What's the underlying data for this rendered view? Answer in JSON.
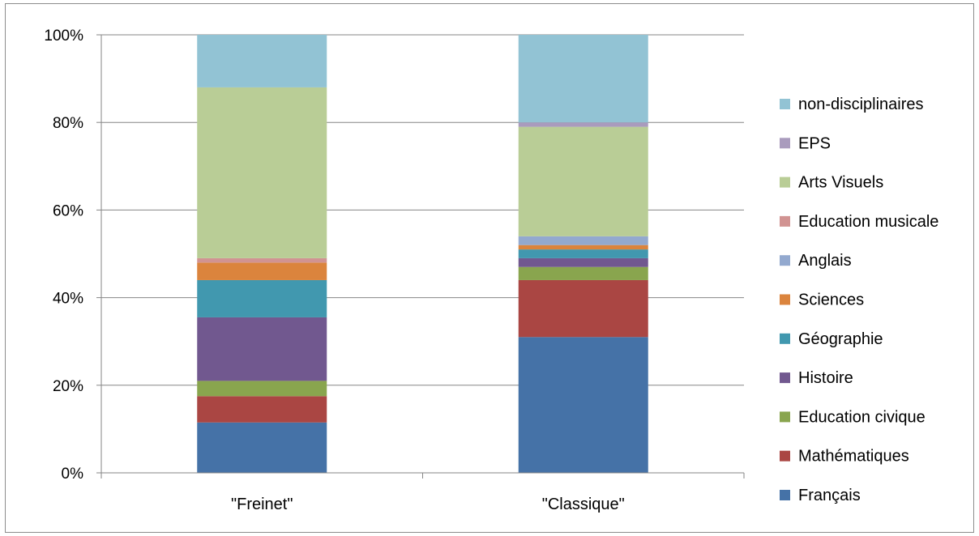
{
  "chart_data": {
    "type": "stacked-bar-100",
    "categories": [
      "\"Freinet\"",
      "\"Classique\""
    ],
    "y_ticks": [
      "0%",
      "20%",
      "40%",
      "60%",
      "80%",
      "100%"
    ],
    "ylim": [
      0,
      100
    ],
    "grid": true,
    "legend_position": "right",
    "series": [
      {
        "name": "Français",
        "color": "#4572a7",
        "values": [
          11.5,
          31
        ]
      },
      {
        "name": "Mathématiques",
        "color": "#aa4643",
        "values": [
          6,
          13
        ]
      },
      {
        "name": "Education civique",
        "color": "#89a54e",
        "values": [
          3.5,
          3
        ]
      },
      {
        "name": "Histoire",
        "color": "#71588f",
        "values": [
          14.5,
          2
        ]
      },
      {
        "name": "Géographie",
        "color": "#4198af",
        "values": [
          8.5,
          2
        ]
      },
      {
        "name": "Sciences",
        "color": "#db843d",
        "values": [
          4,
          1
        ]
      },
      {
        "name": "Anglais",
        "color": "#93a9cf",
        "values": [
          0,
          2
        ]
      },
      {
        "name": "Education musicale",
        "color": "#d19392",
        "values": [
          1,
          0
        ]
      },
      {
        "name": "Arts Visuels",
        "color": "#b9cd96",
        "values": [
          39,
          25
        ]
      },
      {
        "name": "EPS",
        "color": "#a99bbd",
        "values": [
          0,
          1
        ]
      },
      {
        "name": "non-disciplinaires",
        "color": "#92c3d4",
        "values": [
          12,
          20
        ]
      }
    ]
  }
}
